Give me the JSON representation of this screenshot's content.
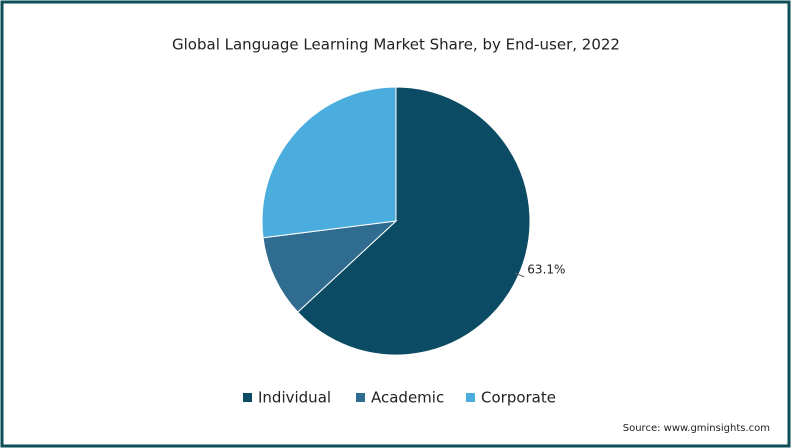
{
  "chart_data": {
    "type": "pie",
    "title": "Global Language Learning  Market Share, by End-user, 2022",
    "categories": [
      "Individual",
      "Academic",
      "Corporate"
    ],
    "values": [
      63.1,
      9.9,
      27.0
    ],
    "value_labels": [
      "63.1%",
      null,
      null
    ],
    "colors": [
      "#0b4b63",
      "#2f6c90",
      "#4badde"
    ],
    "legend": "bottom",
    "source": "Source: www.gminsights.com"
  }
}
